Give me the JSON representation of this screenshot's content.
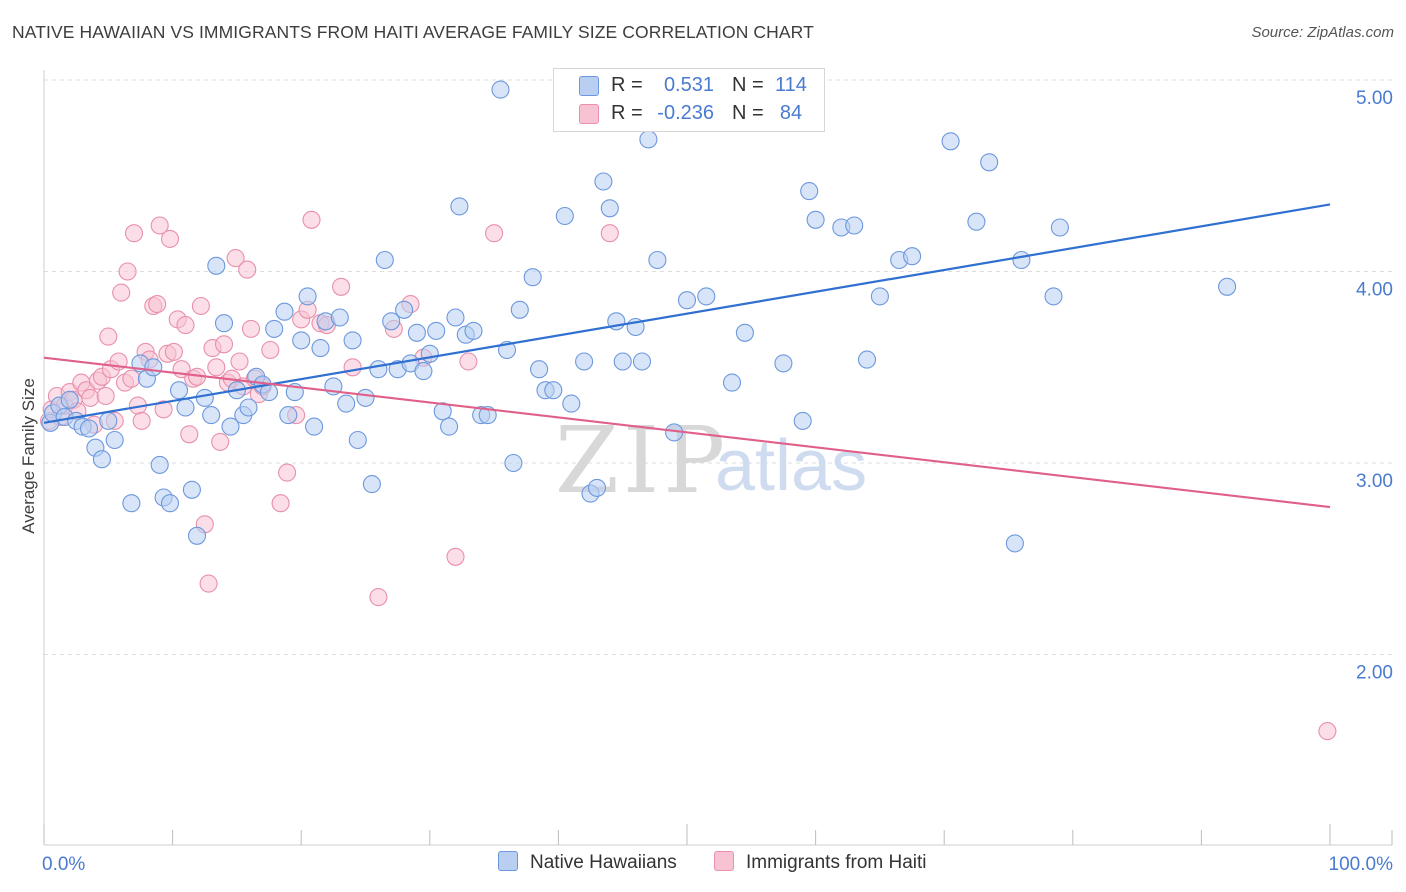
{
  "title": "NATIVE HAWAIIAN VS IMMIGRANTS FROM HAITI AVERAGE FAMILY SIZE CORRELATION CHART",
  "source": "Source: ZipAtlas.com",
  "watermark": {
    "zip": "ZIP",
    "atlas": "atlas"
  },
  "legend": {
    "rows": [
      {
        "r_label": "R =",
        "r_value": "0.531",
        "n_label": "N =",
        "n_value": "114"
      },
      {
        "r_label": "R =",
        "r_value": "-0.236",
        "n_label": "N =",
        "n_value": "84"
      }
    ]
  },
  "bottom_legend": [
    "Native Hawaiians",
    "Immigrants from Haiti"
  ],
  "colors": {
    "blue_fill": "#b8cff2",
    "blue_stroke": "#6d98dd",
    "blue_line": "#3070d0",
    "pink_fill": "#f7c3d3",
    "pink_stroke": "#e890ac",
    "pink_line": "#e0608a",
    "axis_text": "#4a7bd0",
    "grid": "#dddddd"
  },
  "chart_data": {
    "type": "scatter",
    "title": "NATIVE HAWAIIAN VS IMMIGRANTS FROM HAITI AVERAGE FAMILY SIZE CORRELATION CHART",
    "xlabel": "",
    "ylabel": "Average Family Size",
    "xlim": [
      0,
      100
    ],
    "ylim": [
      1.1,
      5.15
    ],
    "x_tick_labels": [
      "0.0%",
      "100.0%"
    ],
    "y_ticks": [
      2.0,
      3.0,
      4.0,
      5.0
    ],
    "y_tick_labels": [
      "2.00",
      "3.00",
      "4.00",
      "5.00"
    ],
    "grid": "horizontal dashed",
    "series": [
      {
        "name": "Native Hawaiians",
        "color": "blue",
        "r": 0.531,
        "n": 114,
        "trend": {
          "x": [
            0,
            100
          ],
          "y": [
            3.21,
            4.35
          ]
        },
        "points": [
          [
            0.5,
            3.21
          ],
          [
            0.7,
            3.26
          ],
          [
            1.2,
            3.3
          ],
          [
            1.6,
            3.24
          ],
          [
            2.0,
            3.33
          ],
          [
            2.5,
            3.22
          ],
          [
            3.0,
            3.19
          ],
          [
            3.5,
            3.18
          ],
          [
            4.0,
            3.08
          ],
          [
            4.5,
            3.02
          ],
          [
            5.0,
            3.22
          ],
          [
            5.5,
            3.12
          ],
          [
            6.8,
            2.79
          ],
          [
            7.5,
            3.52
          ],
          [
            8.0,
            3.44
          ],
          [
            8.5,
            3.5
          ],
          [
            9.0,
            2.99
          ],
          [
            9.3,
            2.82
          ],
          [
            9.8,
            2.79
          ],
          [
            10.5,
            3.38
          ],
          [
            11.0,
            3.29
          ],
          [
            11.5,
            2.86
          ],
          [
            11.9,
            2.62
          ],
          [
            12.5,
            3.34
          ],
          [
            13.0,
            3.25
          ],
          [
            13.4,
            4.03
          ],
          [
            14.0,
            3.73
          ],
          [
            14.5,
            3.19
          ],
          [
            15.0,
            3.38
          ],
          [
            15.5,
            3.25
          ],
          [
            15.9,
            3.29
          ],
          [
            16.5,
            3.45
          ],
          [
            17.0,
            3.41
          ],
          [
            17.5,
            3.37
          ],
          [
            17.9,
            3.7
          ],
          [
            18.7,
            3.79
          ],
          [
            19.0,
            3.25
          ],
          [
            19.5,
            3.37
          ],
          [
            20.0,
            3.64
          ],
          [
            20.5,
            3.87
          ],
          [
            21.0,
            3.19
          ],
          [
            21.5,
            3.6
          ],
          [
            21.9,
            3.74
          ],
          [
            22.5,
            3.4
          ],
          [
            23.0,
            3.76
          ],
          [
            23.5,
            3.31
          ],
          [
            24.0,
            3.64
          ],
          [
            24.4,
            3.12
          ],
          [
            25.0,
            3.34
          ],
          [
            25.5,
            2.89
          ],
          [
            26.0,
            3.49
          ],
          [
            26.5,
            4.06
          ],
          [
            27.0,
            3.74
          ],
          [
            27.5,
            3.49
          ],
          [
            28.0,
            3.8
          ],
          [
            28.5,
            3.52
          ],
          [
            29.0,
            3.68
          ],
          [
            29.5,
            3.48
          ],
          [
            30.0,
            3.57
          ],
          [
            30.5,
            3.69
          ],
          [
            31.0,
            3.27
          ],
          [
            31.5,
            3.19
          ],
          [
            32.0,
            3.76
          ],
          [
            32.3,
            4.34
          ],
          [
            32.8,
            3.67
          ],
          [
            33.4,
            3.69
          ],
          [
            34.0,
            3.25
          ],
          [
            34.5,
            3.25
          ],
          [
            35.5,
            4.95
          ],
          [
            36.0,
            3.59
          ],
          [
            36.5,
            3.0
          ],
          [
            37.0,
            3.8
          ],
          [
            38.0,
            3.97
          ],
          [
            38.5,
            3.49
          ],
          [
            39.0,
            3.38
          ],
          [
            39.6,
            3.38
          ],
          [
            40.5,
            4.29
          ],
          [
            41.0,
            3.31
          ],
          [
            42.0,
            3.53
          ],
          [
            42.5,
            2.84
          ],
          [
            43.0,
            2.87
          ],
          [
            43.5,
            4.47
          ],
          [
            44.0,
            4.33
          ],
          [
            44.5,
            3.74
          ],
          [
            45.0,
            3.53
          ],
          [
            46.0,
            3.71
          ],
          [
            46.5,
            3.53
          ],
          [
            47.0,
            4.69
          ],
          [
            47.7,
            4.06
          ],
          [
            49.0,
            3.16
          ],
          [
            50.0,
            3.85
          ],
          [
            51.5,
            3.87
          ],
          [
            53.5,
            3.42
          ],
          [
            54.5,
            3.68
          ],
          [
            57.5,
            3.52
          ],
          [
            59.0,
            3.22
          ],
          [
            59.5,
            4.42
          ],
          [
            60.0,
            4.27
          ],
          [
            62.0,
            4.23
          ],
          [
            63.0,
            4.24
          ],
          [
            64.0,
            3.54
          ],
          [
            65.0,
            3.87
          ],
          [
            66.5,
            4.06
          ],
          [
            67.5,
            4.08
          ],
          [
            70.5,
            4.68
          ],
          [
            72.5,
            4.26
          ],
          [
            73.5,
            4.57
          ],
          [
            75.5,
            2.58
          ],
          [
            76.0,
            4.06
          ],
          [
            78.5,
            3.87
          ],
          [
            79.0,
            4.23
          ],
          [
            92.0,
            3.92
          ]
        ]
      },
      {
        "name": "Immigrants from Haiti",
        "color": "pink",
        "r": -0.236,
        "n": 84,
        "trend": {
          "x": [
            0,
            100
          ],
          "y": [
            3.55,
            2.77
          ]
        },
        "points": [
          [
            0.4,
            3.22
          ],
          [
            0.6,
            3.28
          ],
          [
            1.0,
            3.35
          ],
          [
            1.3,
            3.24
          ],
          [
            1.6,
            3.3
          ],
          [
            2.0,
            3.37
          ],
          [
            2.3,
            3.33
          ],
          [
            2.6,
            3.27
          ],
          [
            2.9,
            3.42
          ],
          [
            3.3,
            3.38
          ],
          [
            3.6,
            3.34
          ],
          [
            3.9,
            3.2
          ],
          [
            4.2,
            3.43
          ],
          [
            4.5,
            3.45
          ],
          [
            4.8,
            3.35
          ],
          [
            5.0,
            3.66
          ],
          [
            5.2,
            3.49
          ],
          [
            5.5,
            3.22
          ],
          [
            5.8,
            3.53
          ],
          [
            6.0,
            3.89
          ],
          [
            6.3,
            3.42
          ],
          [
            6.5,
            4.0
          ],
          [
            6.8,
            3.44
          ],
          [
            7.0,
            4.2
          ],
          [
            7.3,
            3.3
          ],
          [
            7.6,
            3.22
          ],
          [
            7.9,
            3.58
          ],
          [
            8.2,
            3.54
          ],
          [
            8.5,
            3.82
          ],
          [
            8.8,
            3.83
          ],
          [
            9.0,
            4.24
          ],
          [
            9.3,
            3.28
          ],
          [
            9.6,
            3.57
          ],
          [
            9.8,
            4.17
          ],
          [
            10.1,
            3.58
          ],
          [
            10.4,
            3.75
          ],
          [
            10.7,
            3.49
          ],
          [
            11.0,
            3.72
          ],
          [
            11.3,
            3.15
          ],
          [
            11.6,
            3.44
          ],
          [
            11.9,
            3.45
          ],
          [
            12.2,
            3.82
          ],
          [
            12.5,
            2.68
          ],
          [
            12.8,
            2.37
          ],
          [
            13.1,
            3.6
          ],
          [
            13.4,
            3.5
          ],
          [
            13.7,
            3.11
          ],
          [
            14.0,
            3.62
          ],
          [
            14.3,
            3.42
          ],
          [
            14.6,
            3.44
          ],
          [
            14.9,
            4.07
          ],
          [
            15.2,
            3.53
          ],
          [
            15.5,
            3.4
          ],
          [
            15.8,
            4.01
          ],
          [
            16.1,
            3.7
          ],
          [
            16.4,
            3.44
          ],
          [
            16.7,
            3.36
          ],
          [
            17.0,
            3.4
          ],
          [
            17.6,
            3.59
          ],
          [
            18.4,
            2.79
          ],
          [
            18.9,
            2.95
          ],
          [
            19.6,
            3.25
          ],
          [
            20.0,
            3.75
          ],
          [
            20.5,
            3.8
          ],
          [
            20.8,
            4.27
          ],
          [
            21.5,
            3.73
          ],
          [
            22.0,
            3.72
          ],
          [
            23.1,
            3.92
          ],
          [
            24.0,
            3.5
          ],
          [
            26.0,
            2.3
          ],
          [
            27.2,
            3.7
          ],
          [
            28.5,
            3.83
          ],
          [
            29.5,
            3.55
          ],
          [
            32.0,
            2.51
          ],
          [
            33.0,
            3.53
          ],
          [
            35.0,
            4.2
          ],
          [
            44.0,
            4.2
          ],
          [
            99.8,
            1.6
          ]
        ]
      }
    ]
  }
}
